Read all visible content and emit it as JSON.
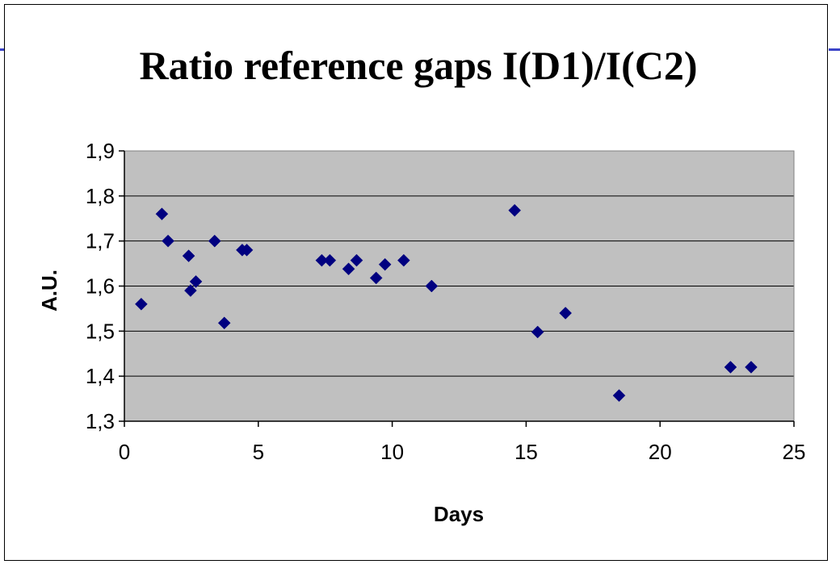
{
  "colors": {
    "plot_background": "#c0c0c0",
    "marker": "#000080",
    "slide_rule": "#3b44c8",
    "gridline": "#000000"
  },
  "chart_data": {
    "type": "scatter",
    "title": "Ratio reference gaps I(D1)/I(C2)",
    "xlabel": "Days",
    "ylabel": "A.U.",
    "xlim": [
      0,
      25
    ],
    "ylim": [
      1.3,
      1.9
    ],
    "xticks": [
      0,
      5,
      10,
      15,
      20,
      25
    ],
    "yticks": [
      1.3,
      1.4,
      1.5,
      1.6,
      1.7,
      1.8,
      1.9
    ],
    "xtick_labels": [
      "0",
      "5",
      "10",
      "15",
      "20",
      "25"
    ],
    "ytick_labels": [
      "1,3",
      "1,4",
      "1,5",
      "1,6",
      "1,7",
      "1,8",
      "1,9"
    ],
    "grid": "horizontal",
    "legend": "none",
    "marker": "diamond",
    "series": [
      {
        "points": [
          [
            0.63,
            1.56
          ],
          [
            1.4,
            1.76
          ],
          [
            1.63,
            1.7
          ],
          [
            2.4,
            1.667
          ],
          [
            2.47,
            1.59
          ],
          [
            2.67,
            1.61
          ],
          [
            3.37,
            1.7
          ],
          [
            3.73,
            1.518
          ],
          [
            4.4,
            1.68
          ],
          [
            4.57,
            1.68
          ],
          [
            7.37,
            1.657
          ],
          [
            7.67,
            1.657
          ],
          [
            8.37,
            1.638
          ],
          [
            8.67,
            1.657
          ],
          [
            9.4,
            1.618
          ],
          [
            9.73,
            1.648
          ],
          [
            10.43,
            1.657
          ],
          [
            11.47,
            1.6
          ],
          [
            14.57,
            1.768
          ],
          [
            15.43,
            1.498
          ],
          [
            16.47,
            1.54
          ],
          [
            18.47,
            1.357
          ],
          [
            22.63,
            1.42
          ],
          [
            23.4,
            1.42
          ]
        ]
      }
    ]
  }
}
